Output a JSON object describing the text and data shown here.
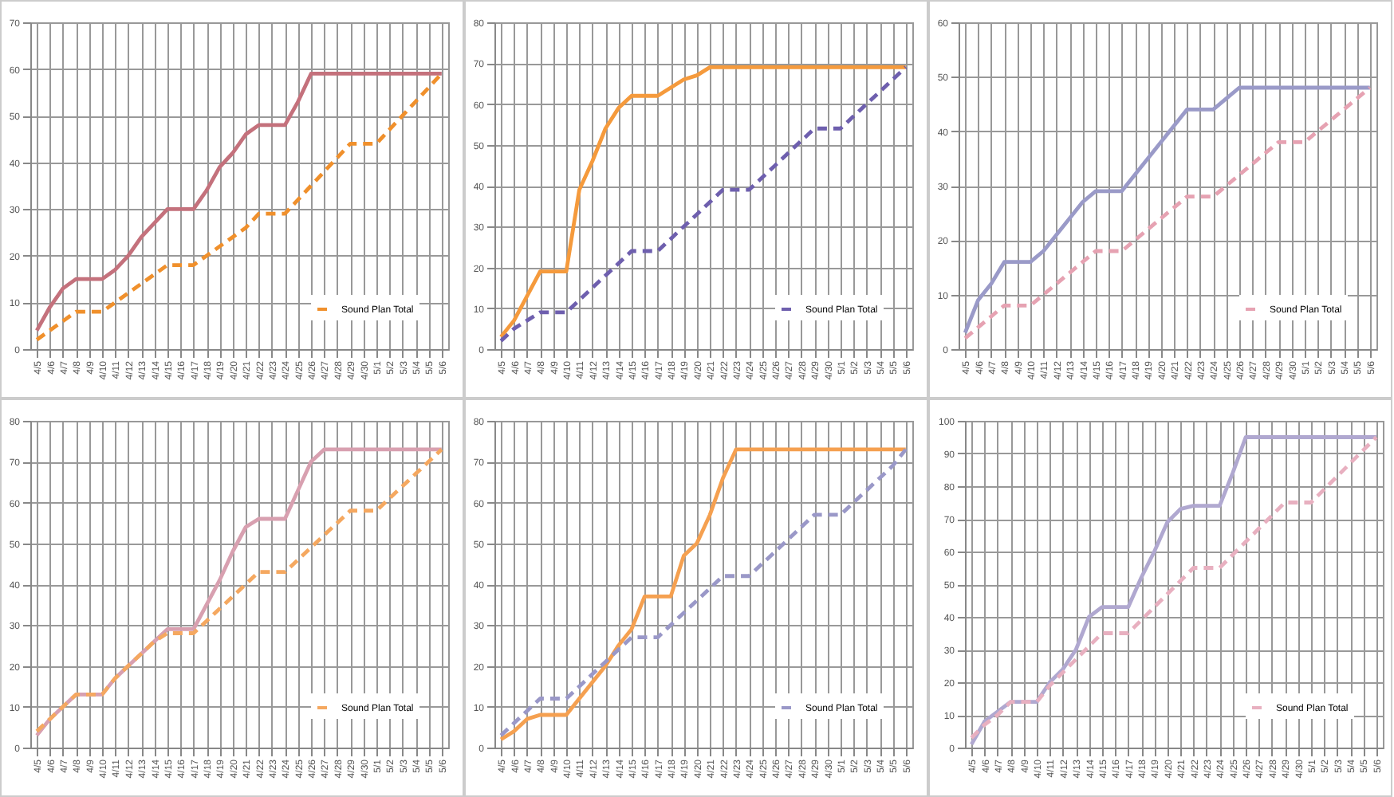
{
  "chart_data": [
    {
      "type": "line",
      "categories": [
        "4/5",
        "4/6",
        "4/7",
        "4/8",
        "4/9",
        "4/10",
        "4/11",
        "4/12",
        "4/13",
        "4/14",
        "4/15",
        "4/16",
        "4/17",
        "4/18",
        "4/19",
        "4/20",
        "4/21",
        "4/22",
        "4/23",
        "4/24",
        "4/25",
        "4/26",
        "4/27",
        "4/28",
        "4/29",
        "4/30",
        "5/1",
        "5/2",
        "5/3",
        "5/4",
        "5/5",
        "5/6"
      ],
      "ylim": [
        0,
        70
      ],
      "yticks": [
        0,
        10,
        20,
        30,
        40,
        50,
        60,
        70
      ],
      "grid": true,
      "legend": "bottom right",
      "series": [
        {
          "color": "#c4717c",
          "line_style": "solid",
          "values": [
            4,
            9,
            13,
            15,
            15,
            15,
            17,
            20,
            24,
            27,
            30,
            30,
            30,
            34,
            39,
            42,
            46,
            48,
            48,
            48,
            53,
            59,
            59,
            59,
            59,
            59,
            59,
            59,
            59,
            59,
            59,
            59
          ]
        },
        {
          "name": "Sound Plan Total",
          "color": "#f0902c",
          "line_style": "dashed",
          "values": [
            2,
            4,
            6,
            8,
            8,
            8,
            10,
            12,
            14,
            16,
            18,
            18,
            18,
            20,
            22,
            24,
            26,
            29,
            29,
            29,
            32,
            35,
            38,
            41,
            44,
            44,
            44,
            47,
            50,
            53,
            56,
            59
          ]
        }
      ]
    },
    {
      "type": "line",
      "categories": [
        "4/5",
        "4/6",
        "4/7",
        "4/8",
        "4/9",
        "4/10",
        "4/11",
        "4/12",
        "4/13",
        "4/14",
        "4/15",
        "4/16",
        "4/17",
        "4/18",
        "4/19",
        "4/20",
        "4/21",
        "4/22",
        "4/23",
        "4/24",
        "4/25",
        "4/26",
        "4/27",
        "4/28",
        "4/29",
        "4/30",
        "5/1",
        "5/2",
        "5/3",
        "5/4",
        "5/5",
        "5/6"
      ],
      "ylim": [
        0,
        80
      ],
      "yticks": [
        0,
        10,
        20,
        30,
        40,
        50,
        60,
        70,
        80
      ],
      "grid": true,
      "legend": "bottom right",
      "series": [
        {
          "color": "#f59a3c",
          "line_style": "solid",
          "values": [
            3,
            7,
            13,
            19,
            19,
            19,
            39,
            46,
            54,
            59,
            62,
            62,
            62,
            64,
            66,
            67,
            69,
            69,
            69,
            69,
            69,
            69,
            69,
            69,
            69,
            69,
            69,
            69,
            69,
            69,
            69,
            69
          ]
        },
        {
          "name": "Sound Plan Total",
          "color": "#6e5fae",
          "line_style": "dashed",
          "values": [
            2,
            5,
            7,
            9,
            9,
            9,
            12,
            15,
            18,
            21,
            24,
            24,
            24,
            27,
            30,
            33,
            36,
            39,
            39,
            39,
            42,
            45,
            48,
            51,
            54,
            54,
            54,
            57,
            60,
            63,
            66,
            69
          ]
        }
      ]
    },
    {
      "type": "line",
      "categories": [
        "4/5",
        "4/6",
        "4/7",
        "4/8",
        "4/9",
        "4/10",
        "4/11",
        "4/12",
        "4/13",
        "4/14",
        "4/15",
        "4/16",
        "4/17",
        "4/18",
        "4/19",
        "4/20",
        "4/21",
        "4/22",
        "4/23",
        "4/24",
        "4/25",
        "4/26",
        "4/27",
        "4/28",
        "4/29",
        "4/30",
        "5/1",
        "5/2",
        "5/3",
        "5/4",
        "5/5",
        "5/6"
      ],
      "ylim": [
        0,
        60
      ],
      "yticks": [
        0,
        10,
        20,
        30,
        40,
        50,
        60
      ],
      "grid": true,
      "legend": "bottom right",
      "series": [
        {
          "color": "#9a9ac8",
          "line_style": "solid",
          "values": [
            3,
            9,
            12,
            16,
            16,
            16,
            18,
            21,
            24,
            27,
            29,
            29,
            29,
            32,
            35,
            38,
            41,
            44,
            44,
            44,
            46,
            48,
            48,
            48,
            48,
            48,
            48,
            48,
            48,
            48,
            48,
            48
          ]
        },
        {
          "name": "Sound Plan Total",
          "color": "#e6a2b2",
          "line_style": "dashed",
          "values": [
            2,
            4,
            6,
            8,
            8,
            8,
            10,
            12,
            14,
            16,
            18,
            18,
            18,
            20,
            22,
            24,
            26,
            28,
            28,
            28,
            30,
            32,
            34,
            36,
            38,
            38,
            38,
            40,
            42,
            44,
            46,
            48
          ]
        }
      ]
    },
    {
      "type": "line",
      "categories": [
        "4/5",
        "4/6",
        "4/7",
        "4/8",
        "4/9",
        "4/10",
        "4/11",
        "4/12",
        "4/13",
        "4/14",
        "4/15",
        "4/16",
        "4/17",
        "4/18",
        "4/19",
        "4/20",
        "4/21",
        "4/22",
        "4/23",
        "4/24",
        "4/25",
        "4/26",
        "4/27",
        "4/28",
        "4/29",
        "4/30",
        "5/1",
        "5/2",
        "5/3",
        "5/4",
        "5/5",
        "5/6"
      ],
      "ylim": [
        0,
        80
      ],
      "yticks": [
        0,
        10,
        20,
        30,
        40,
        50,
        60,
        70,
        80
      ],
      "grid": true,
      "legend": "bottom right",
      "series": [
        {
          "color": "#d8a0b0",
          "line_style": "solid",
          "values": [
            3,
            7,
            10,
            13,
            13,
            13,
            17,
            20,
            23,
            26,
            29,
            29,
            29,
            35,
            41,
            48,
            54,
            56,
            56,
            56,
            63,
            70,
            73,
            73,
            73,
            73,
            73,
            73,
            73,
            73,
            73,
            73
          ]
        },
        {
          "name": "Sound Plan Total",
          "color": "#f5a860",
          "line_style": "dashed",
          "values": [
            4,
            7,
            10,
            13,
            13,
            13,
            17,
            20,
            23,
            26,
            28,
            28,
            28,
            31,
            34,
            37,
            40,
            43,
            43,
            43,
            46,
            49,
            52,
            55,
            58,
            58,
            58,
            61,
            64,
            67,
            70,
            73
          ]
        }
      ]
    },
    {
      "type": "line",
      "categories": [
        "4/5",
        "4/6",
        "4/7",
        "4/8",
        "4/9",
        "4/10",
        "4/11",
        "4/12",
        "4/13",
        "4/14",
        "4/15",
        "4/16",
        "4/17",
        "4/18",
        "4/19",
        "4/20",
        "4/21",
        "4/22",
        "4/23",
        "4/24",
        "4/25",
        "4/26",
        "4/27",
        "4/28",
        "4/29",
        "4/30",
        "5/1",
        "5/2",
        "5/3",
        "5/4",
        "5/5",
        "5/6"
      ],
      "ylim": [
        0,
        80
      ],
      "yticks": [
        0,
        10,
        20,
        30,
        40,
        50,
        60,
        70,
        80
      ],
      "grid": true,
      "legend": "bottom right",
      "series": [
        {
          "color": "#f5a050",
          "line_style": "solid",
          "values": [
            2,
            4,
            7,
            8,
            8,
            8,
            12,
            16,
            20,
            25,
            29,
            37,
            37,
            37,
            47,
            50,
            57,
            66,
            73,
            73,
            73,
            73,
            73,
            73,
            73,
            73,
            73,
            73,
            73,
            73,
            73,
            73
          ]
        },
        {
          "name": "Sound Plan Total",
          "color": "#9a98c8",
          "line_style": "dashed",
          "values": [
            3,
            6,
            9,
            12,
            12,
            12,
            15,
            18,
            21,
            24,
            27,
            27,
            27,
            30,
            33,
            36,
            39,
            42,
            42,
            42,
            45,
            48,
            51,
            54,
            57,
            57,
            57,
            60,
            63,
            66,
            69,
            73
          ]
        }
      ]
    },
    {
      "type": "line",
      "categories": [
        "4/5",
        "4/6",
        "4/7",
        "4/8",
        "4/9",
        "4/10",
        "4/11",
        "4/12",
        "4/13",
        "4/14",
        "4/15",
        "4/16",
        "4/17",
        "4/18",
        "4/19",
        "4/20",
        "4/21",
        "4/22",
        "4/23",
        "4/24",
        "4/25",
        "4/26",
        "4/27",
        "4/28",
        "4/29",
        "4/30",
        "5/1",
        "5/2",
        "5/3",
        "5/4",
        "5/5",
        "5/6"
      ],
      "ylim": [
        0,
        100
      ],
      "yticks": [
        0,
        10,
        20,
        30,
        40,
        50,
        60,
        70,
        80,
        90,
        100
      ],
      "grid": true,
      "legend": "bottom right",
      "series": [
        {
          "color": "#b0a8d0",
          "line_style": "solid",
          "values": [
            1,
            8,
            11,
            14,
            14,
            14,
            20,
            24,
            30,
            40,
            43,
            43,
            43,
            52,
            60,
            69,
            73,
            74,
            74,
            74,
            84,
            95,
            95,
            95,
            95,
            95,
            95,
            95,
            95,
            95,
            95,
            95
          ]
        },
        {
          "name": "Sound Plan Total",
          "color": "#e8b0c0",
          "line_style": "dashed",
          "values": [
            3,
            7,
            10,
            14,
            14,
            14,
            19,
            23,
            27,
            31,
            35,
            35,
            35,
            39,
            43,
            47,
            51,
            55,
            55,
            55,
            59,
            63,
            67,
            71,
            75,
            75,
            75,
            79,
            83,
            87,
            91,
            95
          ]
        }
      ]
    }
  ]
}
